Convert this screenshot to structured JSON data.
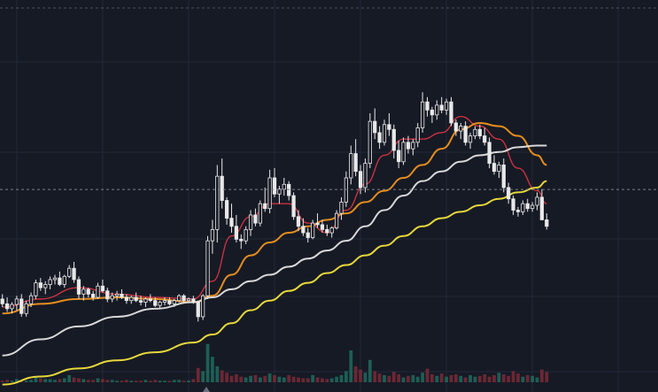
{
  "chart_data": {
    "type": "candlestick",
    "title": "",
    "xlabel": "",
    "ylabel": "",
    "grid": true,
    "legend": "none",
    "ylim": [
      0,
      100
    ],
    "volume_ylim": [
      0,
      100
    ],
    "crosshair_y_value": 56.4,
    "candle_colors": {
      "up": "#e8e8e8",
      "down": "#e8e8e8"
    },
    "volume_colors": {
      "up": "#1f6b5e",
      "down": "#7a2a36"
    },
    "ohlc": [
      [
        22.5,
        24.0,
        20.0,
        21.0
      ],
      [
        21.0,
        23.0,
        18.5,
        19.5
      ],
      [
        19.5,
        21.5,
        18.0,
        20.8
      ],
      [
        20.8,
        23.5,
        19.0,
        22.5
      ],
      [
        22.5,
        24.0,
        17.0,
        18.0
      ],
      [
        18.0,
        22.0,
        17.0,
        21.0
      ],
      [
        21.0,
        24.5,
        20.0,
        23.5
      ],
      [
        23.5,
        28.5,
        22.5,
        27.5
      ],
      [
        27.5,
        29.0,
        25.0,
        26.0
      ],
      [
        26.0,
        28.0,
        24.0,
        27.0
      ],
      [
        27.0,
        29.5,
        25.5,
        28.5
      ],
      [
        28.5,
        30.0,
        27.0,
        29.0
      ],
      [
        29.0,
        31.0,
        26.5,
        27.0
      ],
      [
        27.0,
        30.0,
        26.0,
        29.5
      ],
      [
        29.5,
        33.0,
        29.0,
        32.0
      ],
      [
        32.0,
        34.0,
        27.5,
        28.5
      ],
      [
        28.5,
        29.5,
        22.5,
        24.0
      ],
      [
        24.0,
        26.5,
        22.0,
        25.5
      ],
      [
        25.5,
        26.0,
        23.0,
        24.0
      ],
      [
        24.0,
        25.0,
        22.0,
        23.0
      ],
      [
        23.0,
        27.5,
        22.5,
        26.5
      ],
      [
        26.5,
        28.5,
        24.5,
        25.0
      ],
      [
        25.0,
        26.0,
        21.5,
        22.5
      ],
      [
        22.5,
        24.5,
        21.5,
        23.5
      ],
      [
        23.5,
        25.0,
        22.0,
        24.0
      ],
      [
        24.0,
        25.5,
        22.5,
        23.0
      ],
      [
        23.0,
        24.0,
        21.0,
        22.0
      ],
      [
        22.0,
        23.5,
        21.0,
        23.0
      ],
      [
        23.0,
        24.5,
        21.5,
        22.0
      ],
      [
        22.0,
        23.5,
        20.5,
        21.5
      ],
      [
        21.5,
        23.0,
        20.0,
        22.5
      ],
      [
        22.5,
        24.0,
        21.5,
        22.0
      ],
      [
        22.0,
        23.0,
        20.0,
        20.5
      ],
      [
        20.5,
        22.0,
        19.5,
        21.5
      ],
      [
        21.5,
        23.0,
        20.5,
        22.0
      ],
      [
        22.0,
        23.0,
        20.5,
        21.0
      ],
      [
        21.0,
        22.5,
        20.0,
        22.0
      ],
      [
        22.0,
        24.0,
        21.5,
        23.5
      ],
      [
        23.5,
        24.0,
        21.5,
        22.0
      ],
      [
        22.0,
        23.0,
        21.5,
        22.5
      ],
      [
        22.5,
        23.5,
        21.0,
        21.5
      ],
      [
        21.5,
        22.0,
        15.5,
        17.0
      ],
      [
        17.0,
        24.0,
        16.0,
        23.5
      ],
      [
        23.5,
        42.0,
        22.5,
        40.5
      ],
      [
        40.5,
        47.0,
        36.5,
        44.0
      ],
      [
        44.0,
        64.0,
        40.0,
        60.5
      ],
      [
        60.5,
        66.0,
        50.5,
        53.0
      ],
      [
        53.0,
        54.0,
        45.5,
        47.5
      ],
      [
        47.5,
        52.0,
        43.0,
        45.0
      ],
      [
        45.0,
        48.5,
        40.0,
        41.0
      ],
      [
        41.0,
        42.5,
        38.0,
        40.5
      ],
      [
        40.5,
        45.0,
        39.5,
        44.0
      ],
      [
        44.0,
        50.0,
        42.0,
        48.5
      ],
      [
        48.5,
        50.5,
        45.0,
        46.0
      ],
      [
        46.0,
        53.0,
        45.0,
        52.0
      ],
      [
        52.0,
        57.0,
        49.5,
        50.5
      ],
      [
        50.5,
        62.5,
        49.0,
        60.0
      ],
      [
        60.0,
        63.0,
        54.0,
        55.0
      ],
      [
        55.0,
        57.5,
        52.0,
        56.5
      ],
      [
        56.5,
        60.0,
        54.5,
        58.0
      ],
      [
        58.0,
        59.0,
        53.0,
        54.5
      ],
      [
        54.5,
        55.5,
        47.0,
        48.0
      ],
      [
        48.0,
        50.0,
        43.5,
        45.0
      ],
      [
        45.0,
        47.5,
        42.0,
        43.0
      ],
      [
        43.0,
        44.5,
        40.0,
        41.5
      ],
      [
        41.5,
        47.0,
        41.0,
        46.0
      ],
      [
        46.0,
        49.0,
        44.5,
        45.5
      ],
      [
        45.5,
        47.0,
        43.0,
        44.0
      ],
      [
        44.0,
        45.5,
        42.0,
        43.0
      ],
      [
        43.0,
        45.0,
        41.5,
        44.5
      ],
      [
        44.5,
        50.0,
        44.0,
        49.0
      ],
      [
        49.0,
        54.0,
        47.0,
        52.5
      ],
      [
        52.5,
        62.0,
        51.0,
        60.0
      ],
      [
        60.0,
        70.0,
        58.0,
        67.5
      ],
      [
        67.5,
        72.0,
        60.5,
        62.0
      ],
      [
        62.0,
        64.0,
        55.0,
        57.0
      ],
      [
        57.0,
        66.0,
        55.5,
        64.5
      ],
      [
        64.5,
        80.0,
        63.0,
        77.5
      ],
      [
        77.5,
        81.5,
        72.0,
        74.0
      ],
      [
        74.0,
        76.0,
        69.0,
        71.0
      ],
      [
        71.0,
        78.0,
        70.0,
        76.5
      ],
      [
        76.5,
        80.0,
        73.0,
        75.0
      ],
      [
        75.0,
        76.5,
        66.0,
        68.5
      ],
      [
        68.5,
        71.5,
        63.0,
        65.0
      ],
      [
        65.0,
        72.5,
        64.0,
        71.0
      ],
      [
        71.0,
        73.0,
        67.5,
        69.0
      ],
      [
        69.0,
        72.0,
        67.0,
        71.0
      ],
      [
        71.0,
        77.0,
        69.5,
        75.5
      ],
      [
        75.5,
        86.5,
        74.0,
        83.5
      ],
      [
        83.5,
        85.0,
        79.0,
        81.0
      ],
      [
        81.0,
        82.0,
        77.0,
        79.5
      ],
      [
        79.5,
        84.0,
        78.0,
        82.5
      ],
      [
        82.5,
        85.0,
        80.0,
        81.0
      ],
      [
        81.0,
        84.5,
        79.5,
        83.5
      ],
      [
        83.5,
        85.0,
        76.0,
        77.0
      ],
      [
        77.0,
        78.0,
        73.0,
        74.5
      ],
      [
        74.5,
        77.0,
        72.0,
        76.0
      ],
      [
        76.0,
        77.5,
        70.0,
        71.0
      ],
      [
        71.0,
        74.0,
        69.0,
        73.0
      ],
      [
        73.0,
        76.0,
        72.0,
        75.0
      ],
      [
        75.0,
        76.5,
        72.0,
        73.0
      ],
      [
        73.0,
        75.5,
        70.0,
        71.0
      ],
      [
        71.0,
        72.5,
        63.0,
        64.5
      ],
      [
        64.5,
        67.0,
        61.0,
        62.0
      ],
      [
        62.0,
        65.0,
        60.0,
        64.0
      ],
      [
        64.0,
        66.0,
        55.5,
        57.0
      ],
      [
        57.0,
        58.5,
        52.0,
        53.5
      ],
      [
        53.5,
        54.5,
        48.5,
        50.0
      ],
      [
        50.0,
        51.0,
        48.0,
        49.5
      ],
      [
        49.5,
        53.0,
        48.5,
        52.0
      ],
      [
        52.0,
        53.5,
        49.5,
        50.5
      ],
      [
        50.5,
        52.5,
        49.5,
        51.5
      ],
      [
        51.5,
        55.5,
        50.0,
        54.0
      ],
      [
        54.0,
        56.5,
        48.0,
        47.0
      ],
      [
        47.0,
        49.0,
        44.0,
        45.0
      ]
    ],
    "volume": [
      2,
      3,
      2,
      4,
      3,
      2,
      3,
      7,
      5,
      4,
      4,
      3,
      4,
      5,
      9,
      6,
      5,
      4,
      3,
      3,
      5,
      4,
      3,
      3,
      2,
      2,
      3,
      2,
      2,
      2,
      3,
      2,
      3,
      2,
      2,
      2,
      3,
      3,
      2,
      2,
      4,
      18,
      14,
      48,
      32,
      20,
      15,
      12,
      8,
      10,
      7,
      6,
      8,
      9,
      6,
      8,
      11,
      9,
      7,
      6,
      9,
      7,
      6,
      5,
      5,
      9,
      6,
      5,
      4,
      5,
      7,
      9,
      14,
      40,
      20,
      16,
      12,
      28,
      14,
      11,
      9,
      8,
      13,
      10,
      6,
      8,
      9,
      7,
      12,
      17,
      10,
      8,
      11,
      7,
      9,
      10,
      8,
      6,
      9,
      7,
      8,
      10,
      7,
      9,
      12,
      10,
      8,
      14,
      11,
      7,
      9,
      8,
      6,
      16,
      13
    ],
    "series": [
      {
        "color": "#d23440",
        "x": [
          0,
          8,
          16,
          24,
          32,
          40,
          44,
          48,
          52,
          56,
          60,
          64,
          68,
          72,
          76,
          80,
          84,
          88,
          92,
          96,
          100,
          104,
          108,
          112,
          114
        ],
        "values": [
          20,
          22.5,
          26,
          24,
          23,
          22.5,
          28,
          42,
          48,
          52,
          52,
          46,
          43,
          50,
          58,
          67,
          72,
          72,
          74,
          79,
          76,
          72,
          63,
          56,
          52
        ]
      },
      {
        "color": "#f0931e",
        "x": [
          0,
          8,
          16,
          24,
          32,
          40,
          44,
          48,
          52,
          56,
          60,
          64,
          68,
          72,
          76,
          80,
          84,
          88,
          92,
          96,
          100,
          104,
          108,
          112,
          114
        ],
        "values": [
          18,
          21,
          22.5,
          23,
          22.5,
          21.5,
          23.5,
          30,
          36,
          40,
          43,
          45,
          47,
          49,
          52.5,
          56,
          60,
          64,
          69,
          75,
          77,
          76,
          73,
          67,
          64
        ]
      },
      {
        "color": "#e1e1e1",
        "x": [
          0,
          8,
          16,
          24,
          32,
          40,
          44,
          48,
          52,
          56,
          60,
          64,
          68,
          72,
          76,
          80,
          84,
          88,
          92,
          96,
          100,
          104,
          108,
          112,
          114
        ],
        "values": [
          5,
          10,
          14,
          17,
          19.5,
          21.5,
          23,
          25.5,
          28,
          30,
          32.5,
          35,
          37.5,
          40.5,
          45,
          50,
          54.5,
          59,
          62,
          65,
          67,
          68,
          69.5,
          70,
          70
        ]
      },
      {
        "color": "#f1e23c",
        "x": [
          0,
          8,
          16,
          24,
          32,
          40,
          44,
          48,
          52,
          56,
          60,
          64,
          68,
          72,
          76,
          80,
          84,
          88,
          92,
          96,
          100,
          104,
          108,
          112,
          114
        ],
        "values": [
          -4,
          -1.5,
          1,
          3.5,
          6,
          9,
          11.5,
          15,
          19,
          22,
          25,
          27.5,
          30.5,
          33,
          36,
          39,
          42,
          45,
          47.5,
          49.5,
          51.5,
          53.5,
          55.5,
          57,
          59
        ]
      }
    ]
  }
}
